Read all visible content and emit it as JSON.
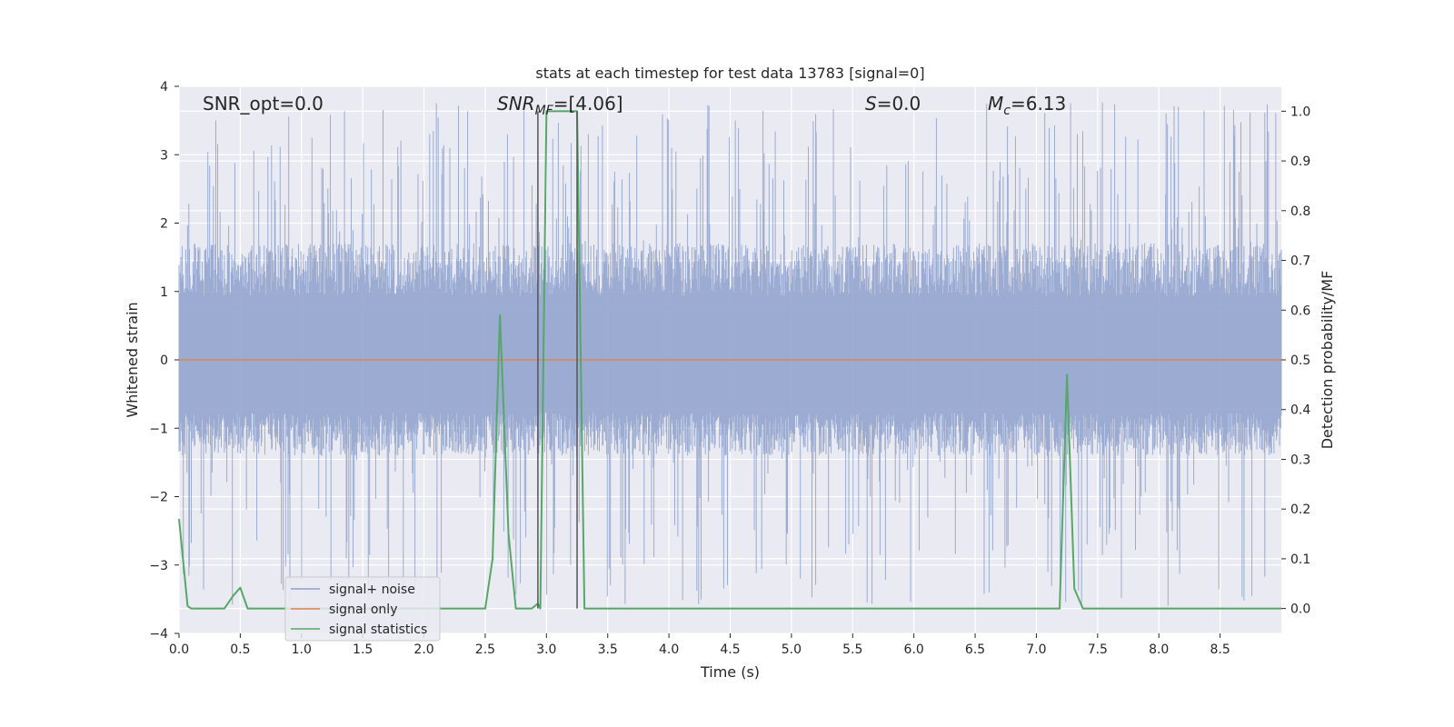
{
  "chart_data": {
    "type": "line",
    "title": "stats at each timestep for test data 13783 [signal=0]",
    "xlabel": "Time (s)",
    "ylabel_left": "Whitened strain",
    "ylabel_right": "Detection probability/MF",
    "xlim": [
      0.0,
      9.0
    ],
    "ylim_left": [
      -4.0,
      4.0
    ],
    "ylim_right": [
      -0.05,
      1.05
    ],
    "xticks": [
      "0.0",
      "0.5",
      "1.0",
      "1.5",
      "2.0",
      "2.5",
      "3.0",
      "3.5",
      "4.0",
      "4.5",
      "5.0",
      "5.5",
      "6.0",
      "6.5",
      "7.0",
      "7.5",
      "8.0",
      "8.5"
    ],
    "yticks_left": [
      "−4",
      "−3",
      "−2",
      "−1",
      "0",
      "1",
      "2",
      "3",
      "4"
    ],
    "yticks_right": [
      "0.0",
      "0.1",
      "0.2",
      "0.3",
      "0.4",
      "0.5",
      "0.6",
      "0.7",
      "0.8",
      "0.9",
      "1.0"
    ],
    "grid": true,
    "legend_position": "lower-left",
    "annotations": {
      "snr_opt": "SNR_opt=0.0",
      "snr_mf_name": "SNR",
      "snr_mf_sub": "MF",
      "snr_mf_value": "=[4.06]",
      "s_name": "S",
      "s_value": "=0.0",
      "mc_name": "M",
      "mc_sub": "c",
      "mc_value": "=6.13"
    },
    "series": [
      {
        "name": "signal+ noise",
        "color": "#8da0cb",
        "axis": "left",
        "kind": "noise-band",
        "typical_range": [
          -1.4,
          1.7
        ],
        "extremes_range": [
          -3.6,
          3.8
        ]
      },
      {
        "name": "signal only",
        "color": "#dd8452",
        "axis": "left",
        "x": [
          0.0,
          9.0
        ],
        "y": [
          0.0,
          0.0
        ]
      },
      {
        "name": "signal statistics",
        "color": "#55a868",
        "axis": "right",
        "x": [
          0.0,
          0.07,
          0.1,
          0.15,
          0.22,
          0.3,
          0.37,
          0.44,
          0.5,
          0.56,
          0.62,
          0.9,
          1.4,
          1.9,
          2.3,
          2.5,
          2.56,
          2.62,
          2.69,
          2.75,
          2.81,
          2.88,
          2.93,
          2.95,
          3.0,
          3.2,
          3.25,
          3.31,
          3.38,
          3.5,
          4.5,
          5.5,
          6.5,
          7.0,
          7.19,
          7.25,
          7.31,
          7.38,
          7.45,
          8.0,
          9.0
        ],
        "y": [
          0.18,
          0.005,
          0.0,
          0.0,
          0.0,
          0.0,
          0.0,
          0.025,
          0.042,
          0.0,
          0.0,
          0.0,
          0.0,
          0.0,
          0.0,
          0.0,
          0.1,
          0.59,
          0.15,
          0.0,
          0.0,
          0.0,
          0.01,
          0.0,
          1.0,
          1.0,
          1.0,
          0.0,
          0.0,
          0.0,
          0.0,
          0.0,
          0.0,
          0.0,
          0.0,
          0.47,
          0.04,
          0.0,
          0.0,
          0.0,
          0.0
        ]
      }
    ],
    "vlines": [
      {
        "x": 2.93,
        "color": "#555555"
      },
      {
        "x": 3.25,
        "color": "#555555"
      }
    ]
  }
}
